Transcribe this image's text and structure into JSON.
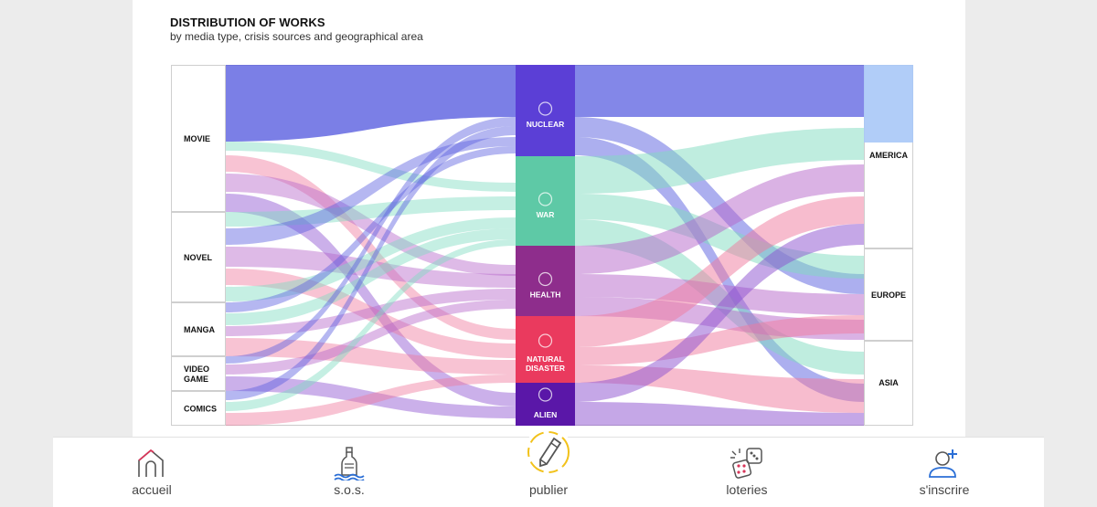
{
  "header": {
    "title": "DISTRIBUTION OF WORKS",
    "subtitle": "by media type, crisis sources and geographical area"
  },
  "chart_data": {
    "type": "sankey",
    "left_nodes": [
      "MOVIE",
      "NOVEL",
      "MANGA",
      "VIDEO\nGAME",
      "COMICS"
    ],
    "middle_nodes": [
      "NUCLEAR",
      "WAR",
      "HEALTH",
      "NATURAL\nDISASTER",
      "ALIEN"
    ],
    "right_nodes": [
      "AMERICA",
      "EUROPE",
      "ASIA"
    ],
    "middle_colors": [
      "#5b3fd6",
      "#5ec9a6",
      "#8e2d8c",
      "#ea3a5e",
      "#5a17a8"
    ]
  },
  "navbar": {
    "items": [
      {
        "label": "accueil",
        "icon": "home-icon"
      },
      {
        "label": "s.o.s.",
        "icon": "bottle-icon"
      },
      {
        "label": "publier",
        "icon": "pencil-icon"
      },
      {
        "label": "loteries",
        "icon": "dice-icon"
      },
      {
        "label": "s'inscrire",
        "icon": "add-user-icon"
      }
    ]
  }
}
